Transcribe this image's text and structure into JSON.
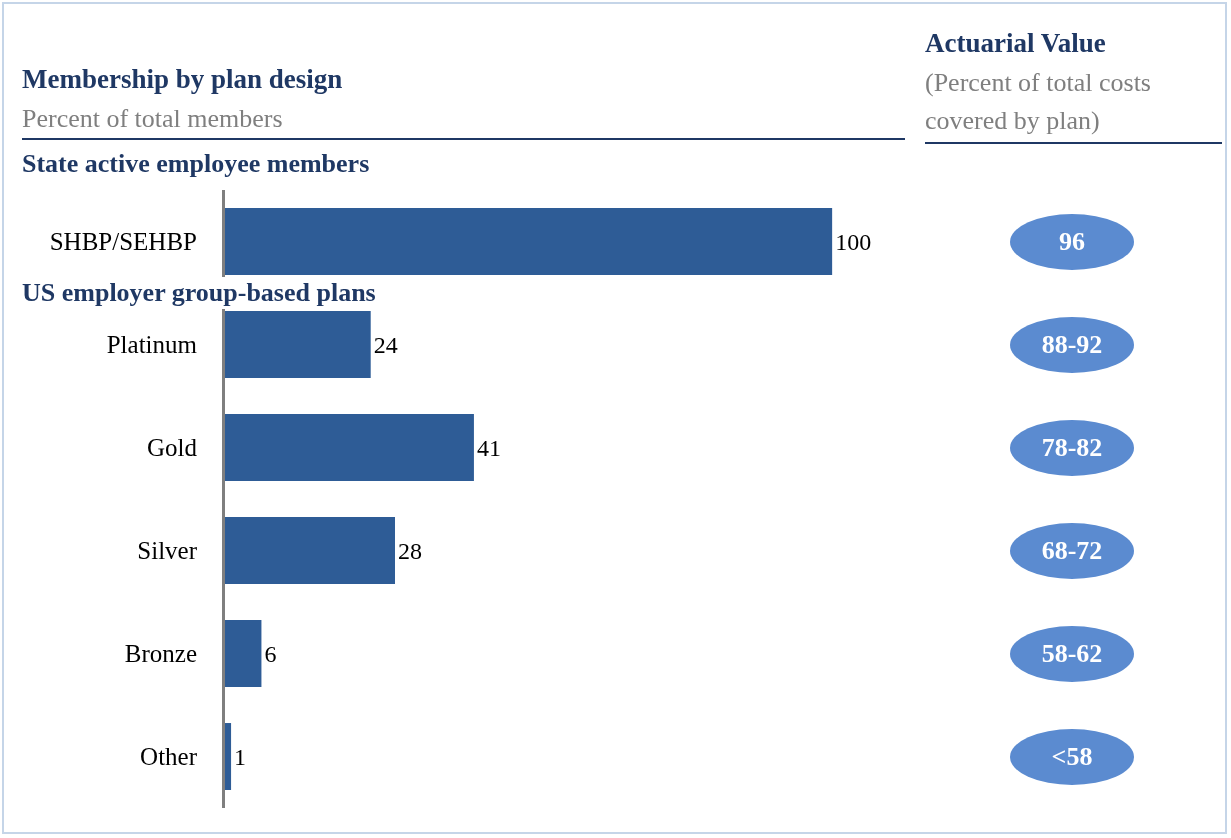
{
  "chart_data": [
    {
      "type": "bar",
      "orientation": "horizontal",
      "title": "Membership by plan design",
      "subtitle": "Percent of total members",
      "categories": [
        "SHBP/SEHBP",
        "Platinum",
        "Gold",
        "Silver",
        "Bronze",
        "Other"
      ],
      "values": [
        100,
        24,
        41,
        28,
        6,
        1
      ],
      "color": "#2e5c96",
      "data_labels": true,
      "grid": false,
      "legend": false,
      "annotations": [
        "State active employee members",
        "US employer group-based plans"
      ]
    },
    {
      "type": "other",
      "title": "Actuarial Value",
      "subtitle": "(Percent of total costs covered by plan)",
      "annotations": [
        "96",
        "88-92",
        "78-82",
        "68-72",
        "58-62",
        "<58"
      ]
    }
  ]
}
